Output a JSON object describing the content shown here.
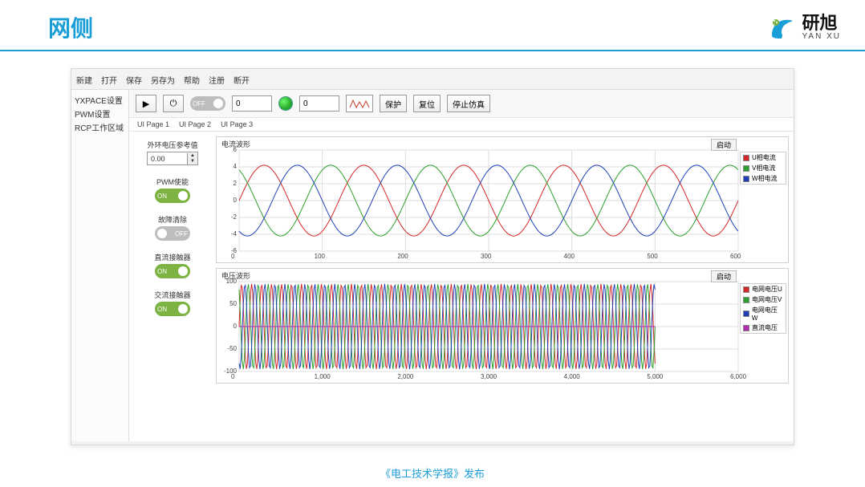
{
  "header": {
    "title": "网侧",
    "logo_text": "研旭",
    "logo_sub": "YAN XU",
    "logo_colors": [
      "#1a9ed8",
      "#7cb342"
    ]
  },
  "app": {
    "title_bar": "  ",
    "menu": [
      "新建",
      "打开",
      "保存",
      "另存为",
      "帮助",
      "注册",
      "断开"
    ],
    "sidebar": {
      "items": [
        "YXPACE设置",
        "PWM设置",
        "RCP工作区域"
      ]
    },
    "toolbar": {
      "play_icon": "▶",
      "power_icon": "⏻",
      "toggle1": {
        "state": "off",
        "label": "OFF"
      },
      "num1": "0",
      "num2": "0",
      "protect": "保护",
      "reset": "复位",
      "stop": "停止仿真"
    },
    "tabs": [
      "UI Page 1",
      "UI Page 2",
      "UI Page 3"
    ],
    "ref": {
      "label": "外环电压参考值",
      "value": "0.00"
    },
    "switches": [
      {
        "label": "PWM使能",
        "state": "on",
        "text": "ON"
      },
      {
        "label": "故障清除",
        "state": "off",
        "text": "OFF"
      },
      {
        "label": "直流接触器",
        "state": "on",
        "text": "ON"
      },
      {
        "label": "交流接触器",
        "state": "on",
        "text": "ON"
      }
    ],
    "chart_current": {
      "title": "电流波形",
      "start_btn": "启动",
      "xlim": [
        0,
        600
      ],
      "xticks": [
        0,
        100,
        200,
        300,
        400,
        500,
        600
      ],
      "ylim": [
        -6,
        6
      ],
      "yticks": [
        -6,
        -4,
        -2,
        0,
        2,
        4,
        6
      ],
      "series": [
        {
          "name": "U相电流",
          "color": "#d62728",
          "amp": 4.2,
          "period": 120,
          "phase": 0
        },
        {
          "name": "V相电流",
          "color": "#2ca02c",
          "amp": 4.2,
          "period": 120,
          "phase": 120
        },
        {
          "name": "W相电流",
          "color": "#1f3fb8",
          "amp": 4.2,
          "period": 120,
          "phase": 240
        }
      ],
      "grid_color": "#dddddd",
      "bg": "#ffffff",
      "title_fontsize": 9,
      "tick_fontsize": 8
    },
    "chart_voltage": {
      "title": "电压波形",
      "start_btn": "启动",
      "xlim": [
        0,
        6000
      ],
      "xticks": [
        0,
        1000,
        2000,
        3000,
        4000,
        5000,
        6000
      ],
      "xtick_labels": [
        "0",
        "1,000",
        "2,000",
        "3,000",
        "4,000",
        "5,000",
        "6,000"
      ],
      "ylim": [
        -100,
        100
      ],
      "yticks": [
        -100,
        -50,
        0,
        50,
        100
      ],
      "series": [
        {
          "name": "电网电压U",
          "color": "#d62728",
          "amp": 95,
          "period": 120,
          "phase": 0
        },
        {
          "name": "电网电压V",
          "color": "#2ca02c",
          "amp": 95,
          "period": 120,
          "phase": 120
        },
        {
          "name": "电网电压W",
          "color": "#1f3fb8",
          "amp": 95,
          "period": 120,
          "phase": 240
        },
        {
          "name": "直流电压",
          "color": "#b02bb0",
          "const": 0
        }
      ],
      "x_draw_max": 5000,
      "grid_color": "#dddddd",
      "bg": "#ffffff",
      "title_fontsize": 9,
      "tick_fontsize": 8
    }
  },
  "footer": "《电工技术学报》发布",
  "colors": {
    "accent": "#1a9ed8",
    "green": "#7cb342",
    "grey": "#bdbdbd"
  }
}
